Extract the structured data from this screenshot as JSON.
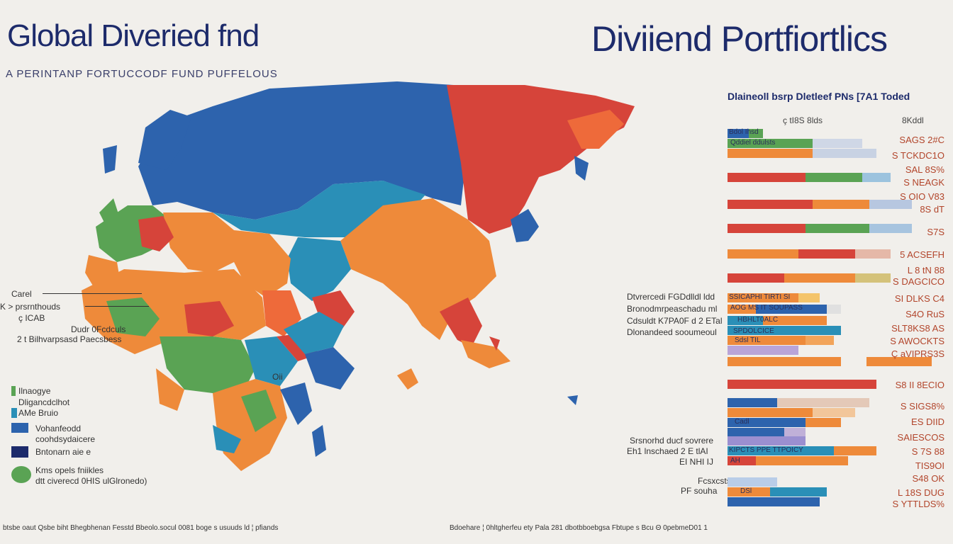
{
  "header": {
    "title_left": "Global Diveried fnd",
    "title_right": "Diviiend Portfiortlics",
    "subtitle": "A PERINTANP FORTUCCODF FUND PUFFELOUS"
  },
  "colors": {
    "blue": "#2d63ad",
    "red": "#d6443a",
    "orange": "#ee8a3a",
    "teal": "#2a8fb7",
    "green": "#5aa354",
    "navy": "#1d2b6b"
  },
  "panel": {
    "title": "Dlaineoll bsrp Dletleef PNs [7A1 Toded",
    "col1": "ç tI8S 8lds",
    "col2": "8Kddl",
    "values": [
      "SAGS 2#C",
      "S TCKDC1O",
      "SAL 8S%",
      "S NEAGK",
      "S OIO V83",
      "8S dT",
      "S7S",
      "5 ACSEFH",
      "L 8 tN 88",
      "S DAGCICO",
      "SI DLKS C4",
      "S4O  RuS",
      "SLT8KS8 AS",
      "S AWOCKTS",
      "Ç aVIPRS3S",
      "S8 II 8ECIO",
      "S SIGS8%",
      "ES DIID",
      "SAIESCOS",
      "S 7S 88",
      "TIS9OI",
      "S48 OK",
      "L 18S DUG",
      "S YTTLDS%"
    ],
    "bar_labels": [
      "Bdol Ihsd",
      "Qddiel ddulsts",
      "SSICAPHI TIRTI SI",
      "AOG  MS IT  SOUPASS",
      "HBHLT0ALC",
      "SPDOLCICE",
      "Sdsl TIL",
      "Cadl",
      "KIPCTS  PPE    TTPOICY",
      "AH",
      "DSl"
    ]
  },
  "notes": {
    "left_caret": "Carel",
    "left_1": "K ˃ prsrnthouds",
    "left_2": "ç ICAB",
    "left_3": "Dudr 0Fcdculs",
    "left_4": "2 t Bilhvarpsasd Paecsbess",
    "mid_1": "Dtvrercedi FGDdlldl ldd",
    "mid_2": "Bronodmrpeaschadu ml",
    "mid_3": "Cdsuldt  K7PA0F  d 2 ETal",
    "mid_4": "Dlonandeed sooumeoul",
    "mid_5": "Srsnorhd ducf sovrere",
    "mid_6": "Eh1 lnschaed 2 E tlAI",
    "mid_7": "EI NHI IJ",
    "mid_8": "Fcsxcsts",
    "mid_9": "PF souha",
    "map_tag": "Oii"
  },
  "legend": [
    {
      "label": "Ilnaogye",
      "color": "#5aa354"
    },
    {
      "label": "Dligancdclhot",
      "color": "#2a8fb7"
    },
    {
      "label": "AMe Bruio",
      "color": "#2d63ad"
    },
    {
      "label": "Vohanfeodd",
      "color": "#2d63ad"
    },
    {
      "label": "coohdsydaicere",
      "color": "#2d63ad"
    },
    {
      "label": "Bntonarn aie e",
      "color": "#1d2b6b"
    },
    {
      "label": "Kms opels fniikles",
      "color": "#5aa354"
    },
    {
      "label": "dtt civerecd 0HIS ulGlronedo)",
      "color": "#5aa354"
    }
  ],
  "footer": {
    "left": "btsbe oaut  Qsbe biht  Bhegbhenan  Fesstd  Bbeolo.socul 0081  boge  s usuuds  ld ¦ pfiands",
    "right": "Bdoehare ¦ 0hltgherfeu ety  Pala  281  dbotbboebgsa  Fbtupe  s Bcu Θ 0pebmeD01 1"
  }
}
